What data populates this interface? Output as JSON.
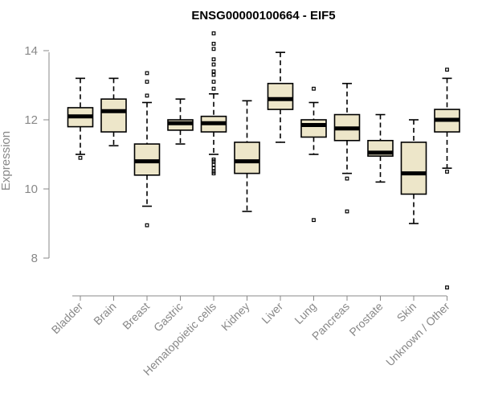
{
  "chart_data": {
    "type": "box",
    "title": "ENSG00000100664 - EIF5",
    "ylabel": "Expression",
    "xlabel": "",
    "ylim": [
      7.0,
      14.6
    ],
    "yticks": [
      8,
      10,
      12,
      14
    ],
    "colors": {
      "box_fill": "#ede6c9",
      "box_stroke": "#000000",
      "axis": "#888888"
    },
    "categories": [
      "Bladder",
      "Brain",
      "Breast",
      "Gastric",
      "Hematopoietic cells",
      "Kidney",
      "Liver",
      "Lung",
      "Pancreas",
      "Prostate",
      "Skin",
      "Unknown / Other"
    ],
    "boxes": [
      {
        "category": "Bladder",
        "whisker_low": 11.0,
        "q1": 11.8,
        "median": 12.1,
        "q3": 12.35,
        "whisker_high": 13.2,
        "outliers": [
          10.9
        ]
      },
      {
        "category": "Brain",
        "whisker_low": 11.25,
        "q1": 11.65,
        "median": 12.25,
        "q3": 12.6,
        "whisker_high": 13.2,
        "outliers": []
      },
      {
        "category": "Breast",
        "whisker_low": 9.5,
        "q1": 10.4,
        "median": 10.8,
        "q3": 11.3,
        "whisker_high": 12.5,
        "outliers": [
          8.95,
          12.7,
          13.1,
          13.35
        ]
      },
      {
        "category": "Gastric",
        "whisker_low": 11.3,
        "q1": 11.7,
        "median": 11.9,
        "q3": 12.0,
        "whisker_high": 12.6,
        "outliers": []
      },
      {
        "category": "Hematopoietic cells",
        "whisker_low": 11.0,
        "q1": 11.65,
        "median": 11.9,
        "q3": 12.1,
        "whisker_high": 12.75,
        "outliers": [
          10.45,
          10.5,
          10.6,
          10.7,
          10.8,
          10.85,
          12.9,
          13.1,
          13.3,
          13.4,
          13.6,
          13.75,
          14.05,
          14.2,
          14.5
        ]
      },
      {
        "category": "Kidney",
        "whisker_low": 9.35,
        "q1": 10.45,
        "median": 10.8,
        "q3": 11.35,
        "whisker_high": 12.55,
        "outliers": []
      },
      {
        "category": "Liver",
        "whisker_low": 11.35,
        "q1": 12.3,
        "median": 12.6,
        "q3": 13.05,
        "whisker_high": 13.95,
        "outliers": []
      },
      {
        "category": "Lung",
        "whisker_low": 11.0,
        "q1": 11.5,
        "median": 11.85,
        "q3": 12.0,
        "whisker_high": 12.5,
        "outliers": [
          9.1,
          12.9
        ]
      },
      {
        "category": "Pancreas",
        "whisker_low": 10.45,
        "q1": 11.4,
        "median": 11.75,
        "q3": 12.15,
        "whisker_high": 13.05,
        "outliers": [
          10.3,
          9.35
        ]
      },
      {
        "category": "Prostate",
        "whisker_low": 10.2,
        "q1": 10.95,
        "median": 11.05,
        "q3": 11.4,
        "whisker_high": 12.15,
        "outliers": []
      },
      {
        "category": "Skin",
        "whisker_low": 9.0,
        "q1": 9.85,
        "median": 10.45,
        "q3": 11.35,
        "whisker_high": 12.0,
        "outliers": []
      },
      {
        "category": "Unknown / Other",
        "whisker_low": 10.6,
        "q1": 11.65,
        "median": 12.0,
        "q3": 12.3,
        "whisker_high": 13.2,
        "outliers": [
          7.15,
          10.5,
          13.45
        ]
      }
    ]
  }
}
